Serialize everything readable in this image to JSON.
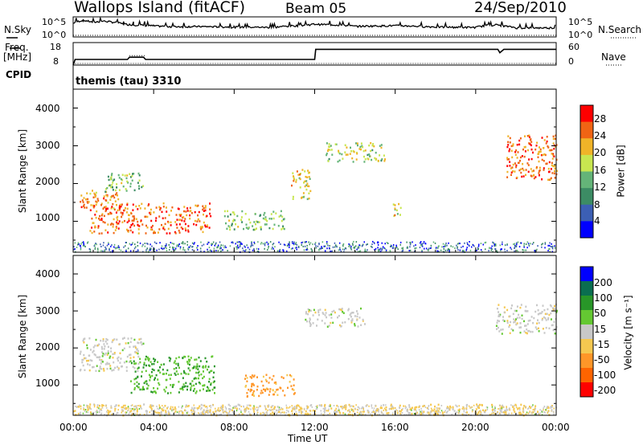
{
  "header": {
    "station": "Wallops Island (fitACF)",
    "beam": "Beam 05",
    "date": "24/Sep/2010"
  },
  "nsky_panel": {
    "label": "N.Sky",
    "right_label": "N.Search",
    "y_ticks_left": [
      "10^5",
      "10^0"
    ],
    "y_ticks_right": [
      "10^5",
      "10^0"
    ]
  },
  "freq_panel": {
    "label_line1": "Freq.",
    "label_line2": "[MHz]",
    "right_label": "Nave",
    "y_ticks_left": [
      "18",
      "8"
    ],
    "y_ticks_right": [
      "60",
      "0"
    ]
  },
  "cpid_panel": {
    "label": "CPID",
    "value": "themis (tau) 3310"
  },
  "power_panel": {
    "ylabel": "Slant Range [km]",
    "y_ticks": [
      "1000",
      "2000",
      "3000",
      "4000"
    ],
    "colorbar_label": "Power [dB]",
    "colorbar_ticks": [
      "4",
      "8",
      "12",
      "16",
      "20",
      "24",
      "28"
    ]
  },
  "velocity_panel": {
    "ylabel": "Slant Range [km]",
    "y_ticks": [
      "1000",
      "2000",
      "3000",
      "4000"
    ],
    "colorbar_label": "Velocity [m s⁻¹]",
    "colorbar_ticks": [
      "200",
      "100",
      "50",
      "15",
      "-15",
      "-50",
      "-100",
      "-200"
    ]
  },
  "x_axis": {
    "label": "Time UT",
    "ticks": [
      "00:00",
      "04:00",
      "08:00",
      "12:00",
      "16:00",
      "20:00",
      "00:00"
    ]
  },
  "colors": {
    "power_scale": [
      "#0000ff",
      "#3c5fb4",
      "#3c8c64",
      "#64b478",
      "#c8e650",
      "#f0b428",
      "#f06414",
      "#ff0000"
    ],
    "velocity_scale": [
      "#ff0000",
      "#ff6400",
      "#ff9628",
      "#f5c850",
      "#c8c8c8",
      "#64c832",
      "#289628",
      "#0a6e50",
      "#0000ff"
    ]
  },
  "chart_data": [
    {
      "type": "line",
      "title": "N.Sky",
      "x_range_hours": [
        0,
        24
      ],
      "y_scale": "log",
      "ylim": [
        1,
        100000
      ],
      "series": [
        {
          "name": "N.Sky",
          "x": [
            0,
            0.5,
            1,
            1.5,
            2,
            2.5,
            3,
            4,
            5,
            6,
            8,
            10,
            11.5,
            12,
            14,
            16,
            18,
            20,
            21,
            21.5,
            22,
            24
          ],
          "values": [
            5000,
            30000,
            8000,
            20000,
            10000,
            3000,
            2000,
            1000,
            600,
            700,
            500,
            400,
            1500,
            3000,
            800,
            1200,
            500,
            400,
            2000,
            800,
            300,
            300
          ]
        }
      ]
    },
    {
      "type": "line",
      "title": "Freq.",
      "x_range_hours": [
        0,
        24
      ],
      "ylim": [
        8,
        18
      ],
      "series": [
        {
          "name": "Freq.",
          "x": [
            0,
            0.1,
            2.7,
            2.8,
            3.5,
            3.6,
            12,
            12.05,
            21.1,
            21.2,
            21.4,
            24
          ],
          "values": [
            8,
            10.5,
            10.5,
            11.5,
            11.5,
            10.5,
            10.5,
            15,
            15,
            13.5,
            15,
            15
          ]
        }
      ]
    },
    {
      "type": "heatmap",
      "title": "Power [dB]",
      "x_range_hours": [
        0,
        24
      ],
      "ylim": [
        180,
        4500
      ],
      "colorbar": {
        "min": 0,
        "max": 30
      },
      "blobs": [
        {
          "t": [
            0.3,
            2.3
          ],
          "r": [
            1350,
            1850
          ],
          "power": 22
        },
        {
          "t": [
            0.8,
            6.8
          ],
          "r": [
            700,
            1500
          ],
          "power": 24
        },
        {
          "t": [
            1.5,
            3.5
          ],
          "r": [
            1800,
            2300
          ],
          "power": 14
        },
        {
          "t": [
            7.5,
            10.5
          ],
          "r": [
            800,
            1300
          ],
          "power": 14
        },
        {
          "t": [
            10.8,
            11.8
          ],
          "r": [
            1600,
            2400
          ],
          "power": 18
        },
        {
          "t": [
            12.5,
            15.5
          ],
          "r": [
            2600,
            3100
          ],
          "power": 16
        },
        {
          "t": [
            15.8,
            16.3
          ],
          "r": [
            1100,
            1500
          ],
          "power": 18
        },
        {
          "t": [
            21.5,
            24
          ],
          "r": [
            2100,
            3300
          ],
          "power": 24
        }
      ]
    },
    {
      "type": "heatmap",
      "title": "Velocity [m s⁻¹]",
      "x_range_hours": [
        0,
        24
      ],
      "ylim": [
        180,
        4500
      ],
      "colorbar": {
        "min": -200,
        "max": 200
      },
      "blobs": [
        {
          "t": [
            0.3,
            3.5
          ],
          "r": [
            1400,
            2300
          ],
          "velocity": 0
        },
        {
          "t": [
            2.8,
            7
          ],
          "r": [
            800,
            1800
          ],
          "velocity": 45
        },
        {
          "t": [
            8.5,
            11
          ],
          "r": [
            700,
            1300
          ],
          "velocity": -60
        },
        {
          "t": [
            11.5,
            14.5
          ],
          "r": [
            2600,
            3100
          ],
          "velocity": 0
        },
        {
          "t": [
            21,
            24
          ],
          "r": [
            2400,
            3200
          ],
          "velocity": 0
        },
        {
          "t": [
            0,
            24
          ],
          "r": [
            200,
            500
          ],
          "velocity": -25
        }
      ]
    }
  ]
}
